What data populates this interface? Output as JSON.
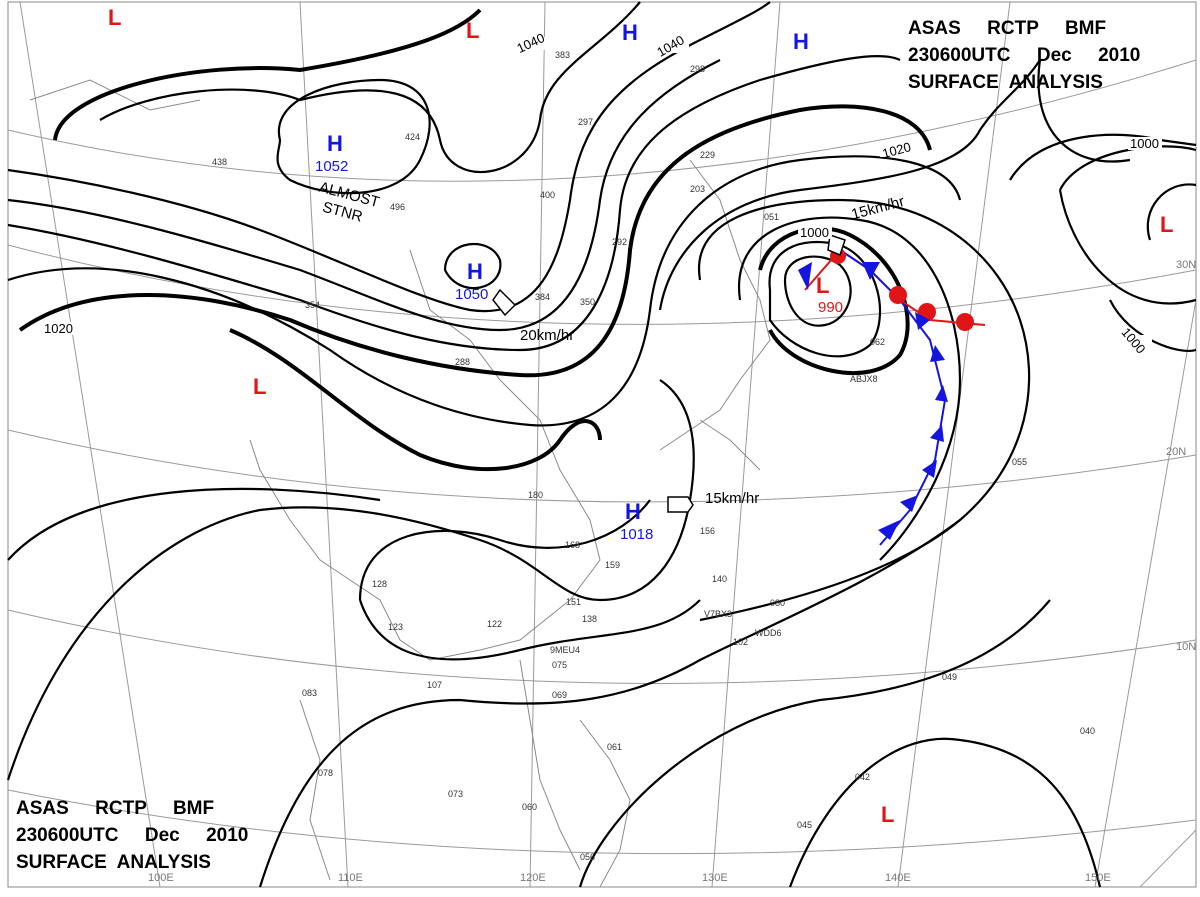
{
  "title": {
    "line1": "ASAS     RCTP     BMF",
    "line2": "230600UTC     Dec     2010",
    "line3": "SURFACE  ANALYSIS"
  },
  "pressure_centers": [
    {
      "type": "H",
      "value": "1052"
    },
    {
      "type": "H",
      "value": "1050"
    },
    {
      "type": "H",
      "value": "1018"
    },
    {
      "type": "H",
      "value": ""
    },
    {
      "type": "H",
      "value": ""
    },
    {
      "type": "L",
      "value": "990"
    },
    {
      "type": "L",
      "value": ""
    },
    {
      "type": "L",
      "value": ""
    },
    {
      "type": "L",
      "value": ""
    },
    {
      "type": "L",
      "value": ""
    },
    {
      "type": "L",
      "value": ""
    }
  ],
  "isobar_labels": [
    "1040",
    "1040",
    "1020",
    "1020",
    "1000",
    "1000",
    "1000"
  ],
  "movement_labels": [
    "15km/hr",
    "20km/hr",
    "15km/hr",
    "ALMOST",
    "STNR"
  ],
  "longitude_labels": [
    "100E",
    "110E",
    "120E",
    "130E",
    "140E",
    "150E"
  ],
  "latitude_labels": [
    "30N",
    "20N",
    "10N"
  ],
  "front_colors": {
    "cold": "#1515e0",
    "warm": "#e01515"
  },
  "stations": [
    "383",
    "298",
    "297",
    "438",
    "424",
    "496",
    "400",
    "292",
    "354",
    "384",
    "350",
    "288",
    "180",
    "168",
    "159",
    "156",
    "140",
    "151",
    "138",
    "128",
    "123",
    "122",
    "107",
    "083",
    "075",
    "069",
    "061",
    "060",
    "078",
    "073",
    "056",
    "045",
    "042",
    "049",
    "055",
    "040",
    "080",
    "102",
    "062",
    "051",
    "203",
    "229",
    "9MEU4",
    "V7BX3",
    "WDD6",
    "ABJX8"
  ]
}
